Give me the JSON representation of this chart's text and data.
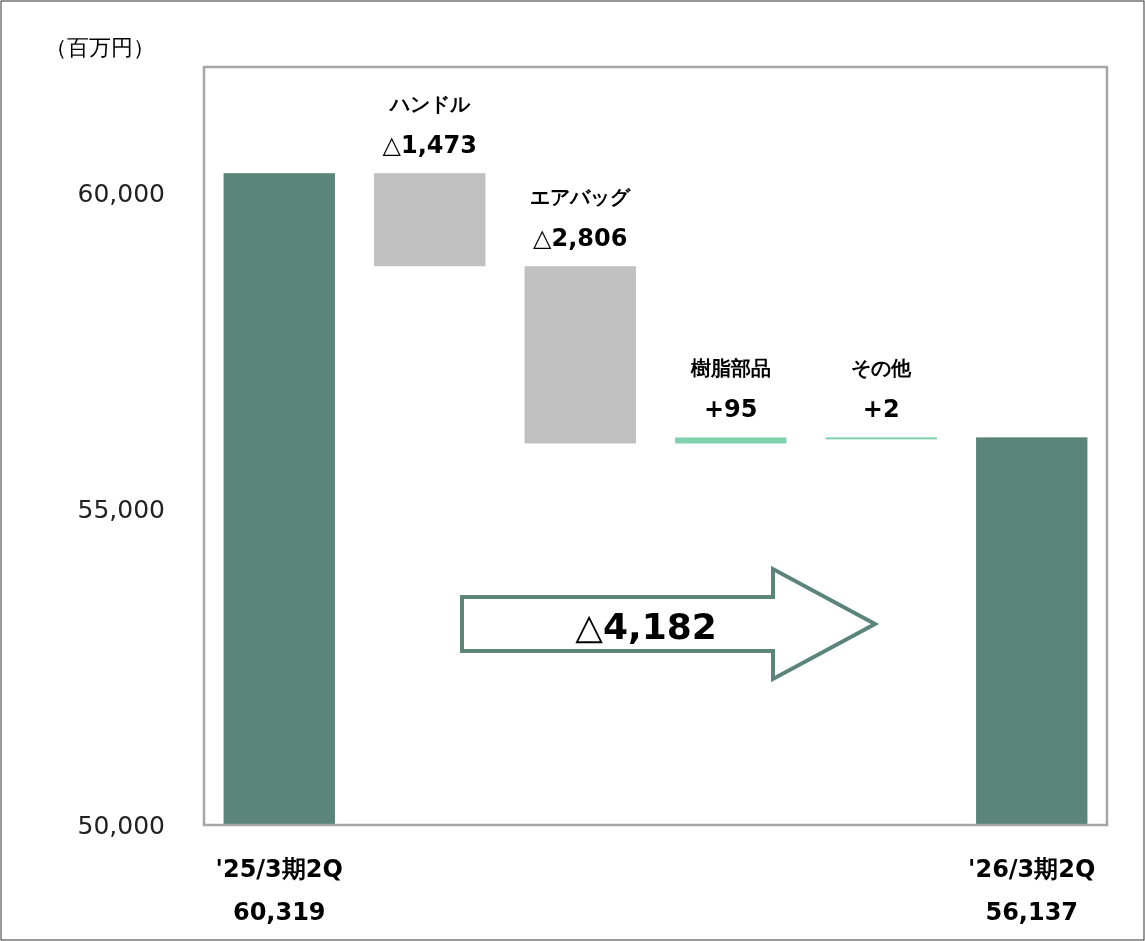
{
  "chart_data": {
    "type": "bar",
    "ylabel": "（百万円）",
    "categories": [
      "'25/3期2Q",
      "ハンドル",
      "エアバッグ",
      "樹脂部品",
      "その他",
      "'26/3期2Q"
    ],
    "values": [
      60319,
      -1473,
      -2806,
      95,
      2,
      56137
    ],
    "base": [
      null,
      60319,
      58846,
      56040,
      56135,
      null
    ],
    "colors": [
      "#5b8579",
      "#c0c0c0",
      "#c0c0c0",
      "#7fd1ae",
      "#7fd1ae",
      "#5b8579"
    ],
    "value_labels": [
      "60,319",
      "△1,473",
      "△2,806",
      "+95",
      "+2",
      "56,137"
    ],
    "ylim": [
      50000,
      62000
    ],
    "yticks": [
      {
        "value": 50000,
        "label": "50,000"
      },
      {
        "value": 55000,
        "label": "55,000"
      },
      {
        "value": 60000,
        "label": "60,000"
      }
    ],
    "grid": false,
    "annotations": [
      "△4,182"
    ]
  }
}
